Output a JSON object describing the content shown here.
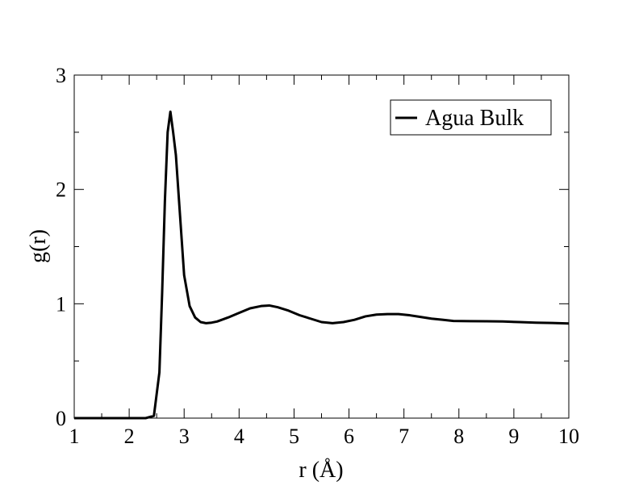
{
  "chart_data": {
    "type": "line",
    "title": "",
    "xlabel": "r (Å)",
    "ylabel": "g(r)",
    "xlim": [
      1,
      10
    ],
    "ylim": [
      0,
      3
    ],
    "xticks": [
      1,
      2,
      3,
      4,
      5,
      6,
      7,
      8,
      9,
      10
    ],
    "yticks": [
      0,
      1,
      2,
      3
    ],
    "grid": false,
    "legend_position": "top-right",
    "series": [
      {
        "name": "Agua Bulk",
        "color": "#000000",
        "x": [
          1.0,
          1.5,
          2.0,
          2.3,
          2.45,
          2.55,
          2.6,
          2.65,
          2.7,
          2.75,
          2.8,
          2.85,
          2.9,
          3.0,
          3.1,
          3.2,
          3.3,
          3.4,
          3.5,
          3.6,
          3.8,
          4.0,
          4.2,
          4.4,
          4.55,
          4.7,
          4.9,
          5.1,
          5.3,
          5.5,
          5.7,
          5.9,
          6.1,
          6.3,
          6.5,
          6.7,
          6.9,
          7.1,
          7.3,
          7.5,
          7.7,
          7.9,
          8.2,
          8.5,
          8.8,
          9.1,
          9.4,
          9.7,
          10.0
        ],
        "y": [
          0.0,
          0.0,
          0.0,
          0.0,
          0.02,
          0.4,
          1.1,
          1.9,
          2.5,
          2.68,
          2.5,
          2.3,
          1.95,
          1.25,
          0.98,
          0.88,
          0.84,
          0.83,
          0.835,
          0.845,
          0.88,
          0.92,
          0.96,
          0.98,
          0.985,
          0.97,
          0.94,
          0.9,
          0.87,
          0.84,
          0.83,
          0.84,
          0.86,
          0.89,
          0.905,
          0.91,
          0.91,
          0.9,
          0.885,
          0.87,
          0.86,
          0.85,
          0.848,
          0.847,
          0.845,
          0.84,
          0.835,
          0.832,
          0.828
        ]
      }
    ]
  }
}
